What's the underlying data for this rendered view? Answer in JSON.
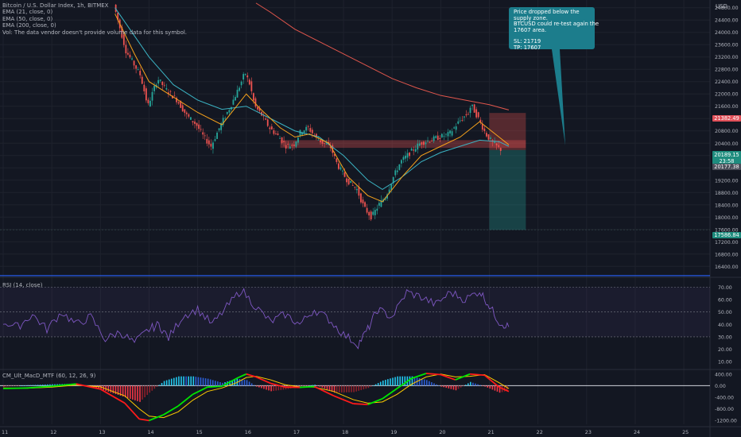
{
  "legend": {
    "title": "Bitcoin / U.S. Dollar Index, 1h, BITMEX",
    "ema21": "EMA (21, close, 0)",
    "ema50": "EMA (50, close, 0)",
    "ema200": "EMA (200, close, 0)",
    "vol": "Vol: The data vendor doesn't provide volume data for this symbol."
  },
  "currency": "USD",
  "rsi_label": "RSI (14, close)",
  "macd_label": "CM_Ult_MacD_MTF (60, 12, 26, 9)",
  "callout": {
    "line1": "Price dropped below the",
    "line2": "supply zone.",
    "line3": "BTCUSD could re-test again the",
    "line4": "17607 area.",
    "line5": "SL: 21719",
    "line6": "TP: 17607"
  },
  "price_tags": {
    "sl": "21382.49",
    "current": "20189.15",
    "countdown": "23:58",
    "current2": "20177.38",
    "tp": "17586.84"
  },
  "colors": {
    "up": "#26a69a",
    "down": "#ef5350",
    "ema21": "#f7a21b",
    "ema50": "#3bb3c3",
    "ema200": "#e0564c",
    "rsi": "#7e57c2",
    "callout": "#1c7d8c"
  },
  "chart_data": [
    {
      "type": "candlestick",
      "title": "Bitcoin / U.S. Dollar Index, 1h, BITMEX",
      "x_ticks": [
        "11",
        "12",
        "13",
        "14",
        "15",
        "16",
        "17",
        "18",
        "19",
        "20",
        "21",
        "22",
        "23",
        "24",
        "25"
      ],
      "y_ticks": [
        16400,
        16800,
        17200,
        17600,
        18000,
        18400,
        18800,
        19200,
        19600,
        20000,
        20400,
        20800,
        21200,
        21600,
        22000,
        22400,
        22800,
        23200,
        23600,
        24000,
        24400,
        24800
      ],
      "ylim": [
        16150,
        25050
      ],
      "price_path": [
        [
          2.3,
          24900
        ],
        [
          2.4,
          24300
        ],
        [
          2.55,
          23400
        ],
        [
          2.7,
          23000
        ],
        [
          2.85,
          22600
        ],
        [
          3.0,
          21600
        ],
        [
          3.2,
          22500
        ],
        [
          3.4,
          22100
        ],
        [
          3.6,
          21800
        ],
        [
          3.8,
          21300
        ],
        [
          4.0,
          21000
        ],
        [
          4.15,
          20600
        ],
        [
          4.3,
          20300
        ],
        [
          4.5,
          21000
        ],
        [
          4.7,
          21600
        ],
        [
          4.9,
          22300
        ],
        [
          5.0,
          22700
        ],
        [
          5.1,
          22300
        ],
        [
          5.2,
          21600
        ],
        [
          5.35,
          21300
        ],
        [
          5.5,
          20900
        ],
        [
          5.7,
          20600
        ],
        [
          5.85,
          20300
        ],
        [
          6.0,
          20350
        ],
        [
          6.15,
          20800
        ],
        [
          6.3,
          20900
        ],
        [
          6.45,
          20600
        ],
        [
          6.6,
          20400
        ],
        [
          6.75,
          20300
        ],
        [
          6.9,
          19700
        ],
        [
          7.1,
          19200
        ],
        [
          7.3,
          18900
        ],
        [
          7.45,
          18300
        ],
        [
          7.6,
          18000
        ],
        [
          7.75,
          18400
        ],
        [
          7.9,
          18700
        ],
        [
          8.05,
          19300
        ],
        [
          8.2,
          19800
        ],
        [
          8.4,
          20100
        ],
        [
          8.6,
          20400
        ],
        [
          8.8,
          20500
        ],
        [
          9.0,
          20600
        ],
        [
          9.2,
          20700
        ],
        [
          9.4,
          21100
        ],
        [
          9.6,
          21400
        ],
        [
          9.65,
          21650
        ],
        [
          9.8,
          21200
        ],
        [
          9.95,
          20700
        ],
        [
          10.1,
          20400
        ],
        [
          10.25,
          20200
        ]
      ],
      "ema21": [
        [
          2.3,
          24600
        ],
        [
          2.7,
          23300
        ],
        [
          3.0,
          22400
        ],
        [
          3.5,
          21900
        ],
        [
          4.0,
          21400
        ],
        [
          4.5,
          21000
        ],
        [
          5.0,
          22000
        ],
        [
          5.3,
          21500
        ],
        [
          5.7,
          20900
        ],
        [
          6.0,
          20600
        ],
        [
          6.3,
          20700
        ],
        [
          6.7,
          20400
        ],
        [
          7.1,
          19300
        ],
        [
          7.5,
          18700
        ],
        [
          7.8,
          18500
        ],
        [
          8.2,
          19300
        ],
        [
          8.6,
          20000
        ],
        [
          9.0,
          20300
        ],
        [
          9.4,
          20600
        ],
        [
          9.8,
          21100
        ],
        [
          10.2,
          20600
        ],
        [
          10.4,
          20350
        ]
      ],
      "ema50": [
        [
          2.3,
          24800
        ],
        [
          3.0,
          23200
        ],
        [
          3.5,
          22300
        ],
        [
          4.0,
          21800
        ],
        [
          4.5,
          21500
        ],
        [
          5.0,
          21600
        ],
        [
          5.5,
          21200
        ],
        [
          6.0,
          20800
        ],
        [
          6.5,
          20600
        ],
        [
          7.0,
          20000
        ],
        [
          7.5,
          19200
        ],
        [
          7.8,
          18900
        ],
        [
          8.2,
          19300
        ],
        [
          8.6,
          19800
        ],
        [
          9.0,
          20100
        ],
        [
          9.4,
          20300
        ],
        [
          9.8,
          20500
        ],
        [
          10.2,
          20450
        ],
        [
          10.4,
          20300
        ]
      ],
      "ema200": [
        [
          5.2,
          24950
        ],
        [
          5.5,
          24650
        ],
        [
          6.0,
          24100
        ],
        [
          6.5,
          23700
        ],
        [
          7.0,
          23300
        ],
        [
          7.5,
          22900
        ],
        [
          8.0,
          22500
        ],
        [
          8.5,
          22200
        ],
        [
          9.0,
          21950
        ],
        [
          9.5,
          21800
        ],
        [
          10.0,
          21650
        ],
        [
          10.4,
          21480
        ]
      ],
      "supply_zone": {
        "x": [
          5.7,
          10.75
        ],
        "y": [
          20250,
          20500
        ]
      },
      "stop_loss_zone": {
        "x": [
          10.0,
          10.75
        ],
        "y": [
          20180,
          21382.49
        ]
      },
      "take_profit_zone": {
        "x": [
          10.0,
          10.75
        ],
        "y": [
          17586.84,
          20180
        ]
      },
      "horizontal_line": 16100
    },
    {
      "type": "line",
      "title": "RSI (14, close)",
      "y_ticks": [
        10,
        20,
        30,
        40,
        50,
        60,
        70
      ],
      "ylim": [
        5,
        76
      ],
      "bands": [
        30,
        50,
        70
      ],
      "values": [
        [
          0,
          42
        ],
        [
          0.3,
          38
        ],
        [
          0.6,
          48
        ],
        [
          0.9,
          36
        ],
        [
          1.2,
          50
        ],
        [
          1.5,
          40
        ],
        [
          1.8,
          46
        ],
        [
          2.1,
          28
        ],
        [
          2.4,
          34
        ],
        [
          2.7,
          25
        ],
        [
          3.0,
          36
        ],
        [
          3.2,
          40
        ],
        [
          3.4,
          29
        ],
        [
          3.7,
          47
        ],
        [
          4.0,
          52
        ],
        [
          4.3,
          40
        ],
        [
          4.6,
          54
        ],
        [
          4.9,
          68
        ],
        [
          5.2,
          54
        ],
        [
          5.5,
          42
        ],
        [
          5.8,
          48
        ],
        [
          6.1,
          40
        ],
        [
          6.4,
          52
        ],
        [
          6.7,
          44
        ],
        [
          7.0,
          32
        ],
        [
          7.3,
          24
        ],
        [
          7.5,
          36
        ],
        [
          7.7,
          52
        ],
        [
          8.0,
          46
        ],
        [
          8.3,
          66
        ],
        [
          8.6,
          62
        ],
        [
          8.9,
          56
        ],
        [
          9.2,
          66
        ],
        [
          9.5,
          60
        ],
        [
          9.8,
          67
        ],
        [
          10.0,
          55
        ],
        [
          10.2,
          42
        ],
        [
          10.4,
          38
        ]
      ]
    },
    {
      "type": "line",
      "title": "CM_Ult_MacD_MTF (60, 12, 26, 9)",
      "y_ticks": [
        -1200,
        -800,
        -400,
        0,
        400
      ],
      "ylim": [
        -1330,
        530
      ],
      "macd": [
        [
          0,
          -100
        ],
        [
          0.5,
          -80
        ],
        [
          1.0,
          -20
        ],
        [
          1.5,
          60
        ],
        [
          2.0,
          -120
        ],
        [
          2.5,
          -600
        ],
        [
          2.8,
          -1150
        ],
        [
          3.0,
          -1200
        ],
        [
          3.3,
          -1000
        ],
        [
          3.6,
          -700
        ],
        [
          3.9,
          -300
        ],
        [
          4.2,
          -50
        ],
        [
          4.5,
          -20
        ],
        [
          4.8,
          250
        ],
        [
          5.0,
          400
        ],
        [
          5.2,
          300
        ],
        [
          5.5,
          80
        ],
        [
          5.8,
          -50
        ],
        [
          6.1,
          -60
        ],
        [
          6.4,
          -30
        ],
        [
          6.8,
          -350
        ],
        [
          7.2,
          -620
        ],
        [
          7.5,
          -650
        ],
        [
          7.8,
          -450
        ],
        [
          8.1,
          -100
        ],
        [
          8.4,
          250
        ],
        [
          8.7,
          420
        ],
        [
          9.0,
          380
        ],
        [
          9.3,
          200
        ],
        [
          9.6,
          400
        ],
        [
          9.9,
          360
        ],
        [
          10.2,
          -50
        ],
        [
          10.4,
          -200
        ]
      ],
      "signal": [
        [
          0,
          -80
        ],
        [
          0.5,
          -90
        ],
        [
          1.0,
          -50
        ],
        [
          1.5,
          20
        ],
        [
          2.0,
          -40
        ],
        [
          2.5,
          -350
        ],
        [
          2.8,
          -800
        ],
        [
          3.0,
          -1050
        ],
        [
          3.3,
          -1100
        ],
        [
          3.6,
          -900
        ],
        [
          3.9,
          -500
        ],
        [
          4.2,
          -200
        ],
        [
          4.5,
          -80
        ],
        [
          4.8,
          100
        ],
        [
          5.0,
          280
        ],
        [
          5.2,
          320
        ],
        [
          5.5,
          200
        ],
        [
          5.8,
          30
        ],
        [
          6.1,
          -40
        ],
        [
          6.4,
          -50
        ],
        [
          6.8,
          -200
        ],
        [
          7.2,
          -480
        ],
        [
          7.5,
          -600
        ],
        [
          7.8,
          -560
        ],
        [
          8.1,
          -300
        ],
        [
          8.4,
          50
        ],
        [
          8.7,
          300
        ],
        [
          9.0,
          400
        ],
        [
          9.3,
          300
        ],
        [
          9.6,
          320
        ],
        [
          9.9,
          380
        ],
        [
          10.2,
          100
        ],
        [
          10.4,
          -100
        ]
      ]
    }
  ]
}
